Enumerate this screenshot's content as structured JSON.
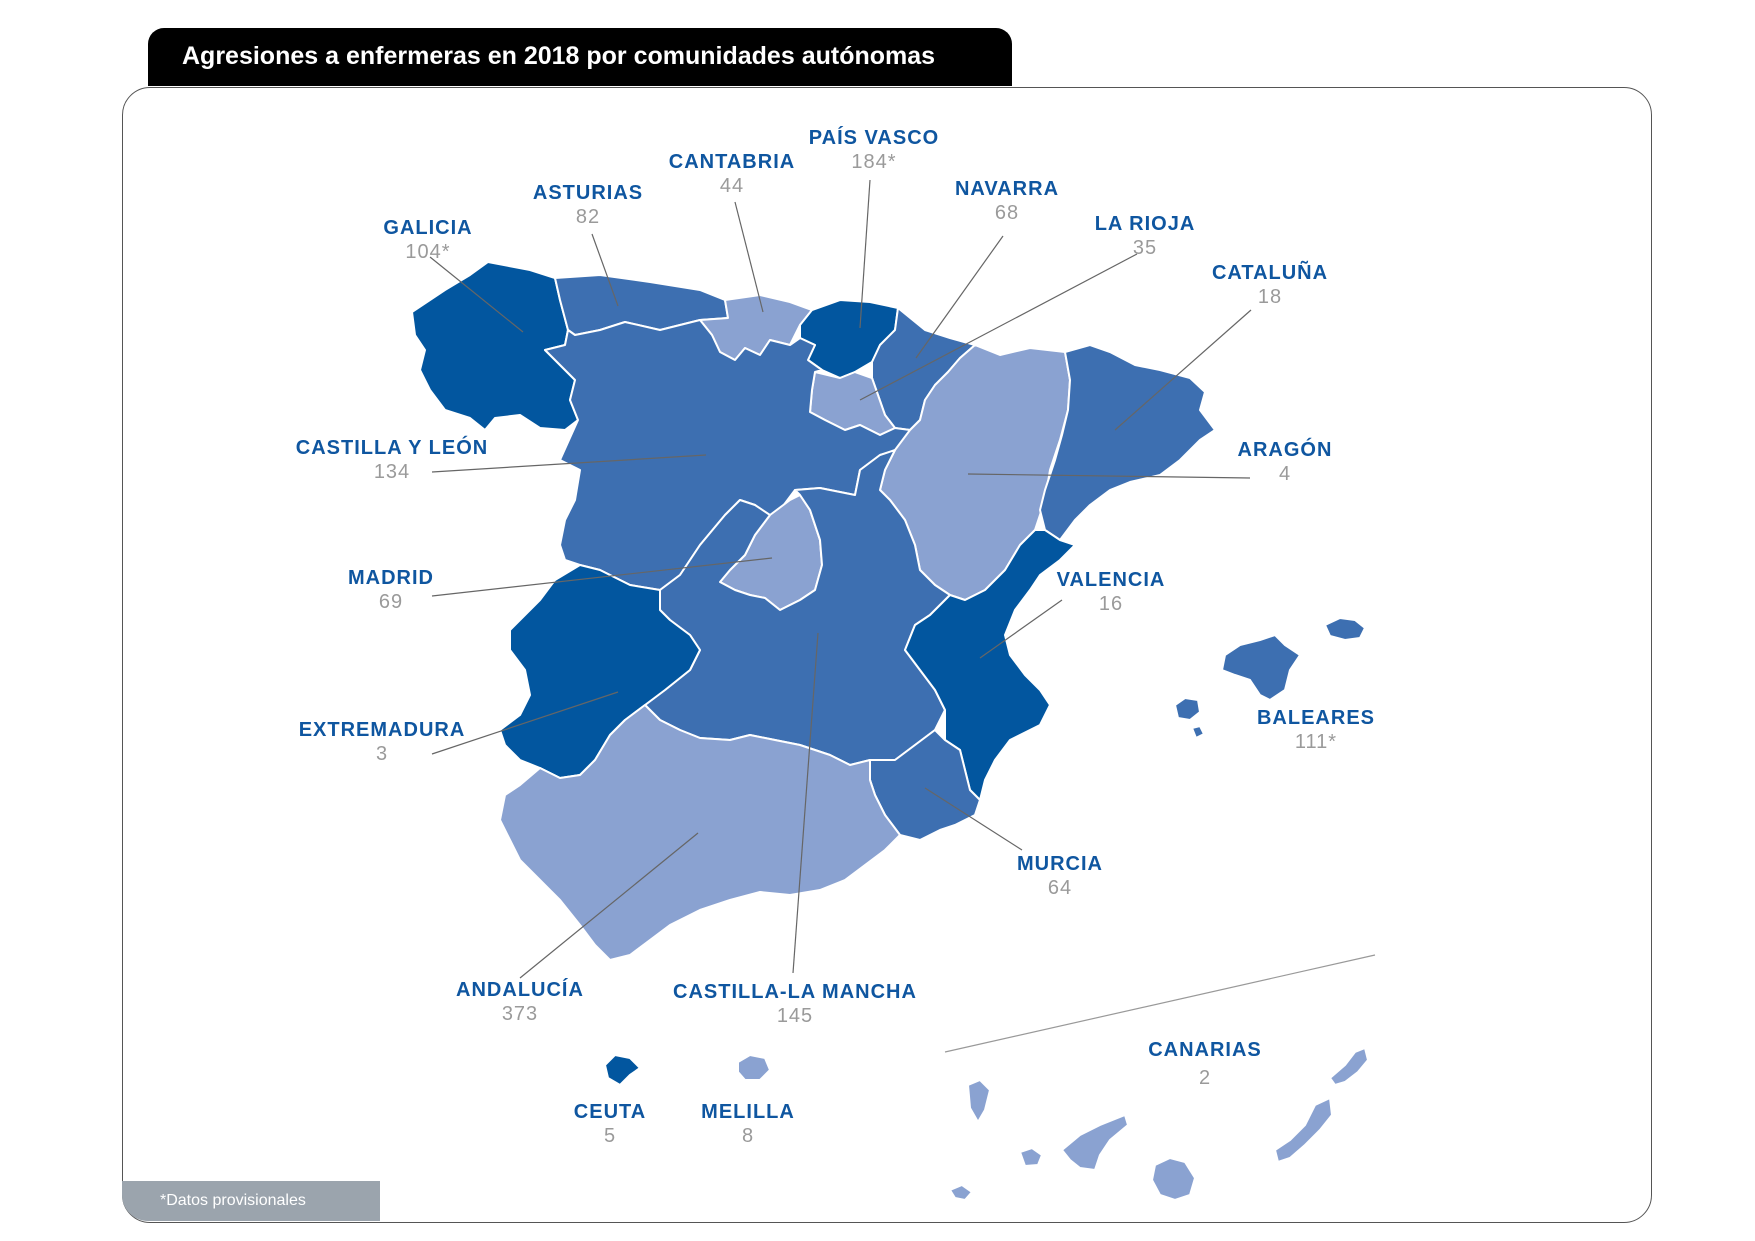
{
  "title": "Agresiones a enfermeras en 2018 por comunidades autónomas",
  "footnote": "*Datos provisionales",
  "colors": {
    "dark": "#02569f",
    "medium": "#3d6fb1",
    "light": "#8aa2d1",
    "label": "#0f56a0",
    "value": "#9a9a9a",
    "leader": "#666666",
    "border": "#ffffff"
  },
  "regions": [
    {
      "id": "galicia",
      "name": "GALICIA",
      "value": "104*",
      "shade": "dark"
    },
    {
      "id": "asturias",
      "name": "ASTURIAS",
      "value": "82",
      "shade": "medium"
    },
    {
      "id": "cantabria",
      "name": "CANTABRIA",
      "value": "44",
      "shade": "light"
    },
    {
      "id": "pais-vasco",
      "name": "PAÍS VASCO",
      "value": "184*",
      "shade": "dark"
    },
    {
      "id": "navarra",
      "name": "NAVARRA",
      "value": "68",
      "shade": "medium"
    },
    {
      "id": "la-rioja",
      "name": "LA RIOJA",
      "value": "35",
      "shade": "light"
    },
    {
      "id": "cataluna",
      "name": "CATALUÑA",
      "value": "18",
      "shade": "medium"
    },
    {
      "id": "aragon",
      "name": "ARAGÓN",
      "value": "4",
      "shade": "light"
    },
    {
      "id": "castilla-y-leon",
      "name": "CASTILLA Y LEÓN",
      "value": "134",
      "shade": "medium"
    },
    {
      "id": "madrid",
      "name": "MADRID",
      "value": "69",
      "shade": "light"
    },
    {
      "id": "valencia",
      "name": "VALENCIA",
      "value": "16",
      "shade": "dark"
    },
    {
      "id": "extremadura",
      "name": "EXTREMADURA",
      "value": "3",
      "shade": "dark"
    },
    {
      "id": "baleares",
      "name": "BALEARES",
      "value": "111*",
      "shade": "medium"
    },
    {
      "id": "murcia",
      "name": "MURCIA",
      "value": "64",
      "shade": "medium"
    },
    {
      "id": "andalucia",
      "name": "ANDALUCÍA",
      "value": "373",
      "shade": "light"
    },
    {
      "id": "castilla-la-mancha",
      "name": "CASTILLA-LA MANCHA",
      "value": "145",
      "shade": "medium"
    },
    {
      "id": "ceuta",
      "name": "CEUTA",
      "value": "5",
      "shade": "dark"
    },
    {
      "id": "melilla",
      "name": "MELILLA",
      "value": "8",
      "shade": "light"
    },
    {
      "id": "canarias",
      "name": "CANARIAS",
      "value": "2",
      "shade": "light"
    }
  ]
}
